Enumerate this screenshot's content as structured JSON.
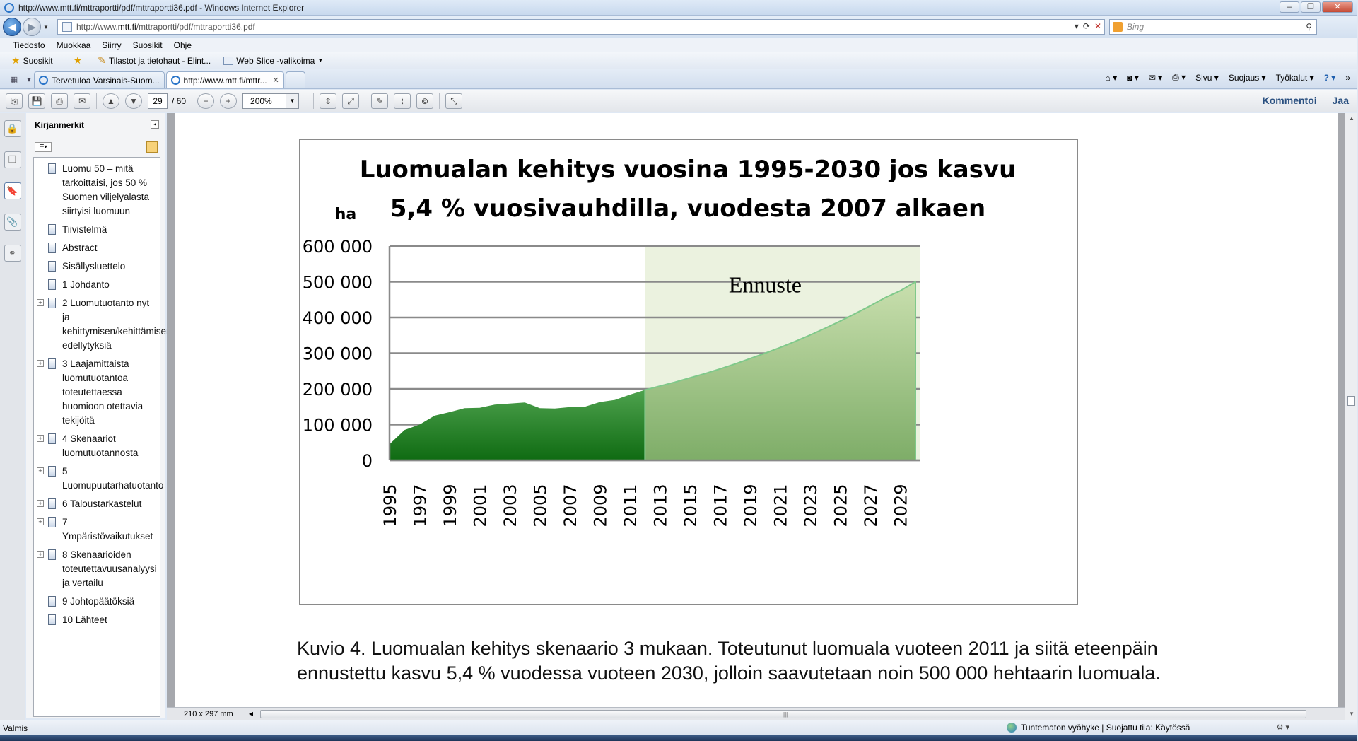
{
  "window": {
    "title": "http://www.mtt.fi/mttraportti/pdf/mttraportti36.pdf - Windows Internet Explorer",
    "min": "–",
    "max": "❐",
    "close": "✕"
  },
  "address": {
    "url_prefix": "http://www.",
    "url_domain": "mtt.fi",
    "url_path": "/mttraportti/pdf/mttraportti36.pdf",
    "search_placeholder": "Bing"
  },
  "menu": [
    "Tiedosto",
    "Muokkaa",
    "Siirry",
    "Suosikit",
    "Ohje"
  ],
  "favorites": {
    "label": "Suosikit",
    "items": [
      "Tilastot ja tietohaut - Elint...",
      "Web Slice -valikoima"
    ]
  },
  "tabs": [
    {
      "label": "Tervetuloa Varsinais-Suom...",
      "active": false
    },
    {
      "label": "http://www.mtt.fi/mttr...",
      "active": true
    }
  ],
  "commandbar": {
    "page": "Sivu",
    "safety": "Suojaus",
    "tools": "Työkalut"
  },
  "acrobat": {
    "current_page": "29",
    "total_pages": "/ 60",
    "zoom": "200%",
    "comment": "Kommentoi",
    "share": "Jaa"
  },
  "bookmarks": {
    "title": "Kirjanmerkit",
    "items": [
      {
        "label": "Luomu 50 – mitä tarkoittaisi, jos 50 % Suomen viljelyalasta siirtyisi luomuun",
        "expandable": false
      },
      {
        "label": "Tiivistelmä",
        "expandable": false
      },
      {
        "label": "Abstract",
        "expandable": false
      },
      {
        "label": "Sisällysluettelo",
        "expandable": false
      },
      {
        "label": "1 Johdanto",
        "expandable": false
      },
      {
        "label": "2 Luomutuotanto nyt ja kehittymisen/kehittämisen edellytyksiä",
        "expandable": true
      },
      {
        "label": "3 Laajamittaista luomutuotantoa toteutettaessa huomioon otettavia tekijöitä",
        "expandable": true
      },
      {
        "label": "4 Skenaariot luomutuotannosta",
        "expandable": true
      },
      {
        "label": "5 Luomupuutarhatuotanto",
        "expandable": true
      },
      {
        "label": "6 Taloustarkastelut",
        "expandable": true
      },
      {
        "label": "7 Ympäristövaikutukset",
        "expandable": true
      },
      {
        "label": "8 Skenaarioiden toteutettavuusanalyysi ja vertailu",
        "expandable": true
      },
      {
        "label": "9 Johtopäätöksiä",
        "expandable": false
      },
      {
        "label": "10 Lähteet",
        "expandable": false
      }
    ]
  },
  "chart_data": {
    "type": "area",
    "title_line1": "Luomualan kehitys vuosina 1995-2030 jos kasvu",
    "title_line2": "5,4 % vuosivauhdilla, vuodesta 2007 alkaen",
    "ylabel": "ha",
    "ylim": [
      0,
      600000
    ],
    "yticks": [
      "0",
      "100 000",
      "200 000",
      "300 000",
      "400 000",
      "500 000",
      "600 000"
    ],
    "ytick_values": [
      0,
      100000,
      200000,
      300000,
      400000,
      500000,
      600000
    ],
    "xlim": [
      1995,
      2030
    ],
    "xtick_labels": [
      "1995",
      "1997",
      "1999",
      "2001",
      "2003",
      "2005",
      "2007",
      "2009",
      "2011",
      "2013",
      "2015",
      "2017",
      "2019",
      "2021",
      "2023",
      "2025",
      "2027",
      "2029"
    ],
    "forecast_label": "Ennuste",
    "forecast_start": 2012,
    "grid": true,
    "series": [
      {
        "x": [
          1995,
          1996,
          1997,
          1998,
          1999,
          2000,
          2001,
          2002,
          2003,
          2004,
          2005,
          2006,
          2007,
          2008,
          2009,
          2010,
          2011,
          2012
        ],
        "values": [
          45000,
          85000,
          100000,
          125000,
          135000,
          146000,
          147000,
          156000,
          159000,
          162000,
          146000,
          145000,
          149000,
          150000,
          163000,
          169000,
          184000,
          197000
        ],
        "color": "#1e7a1e"
      },
      {
        "x": [
          2012,
          2013,
          2014,
          2015,
          2016,
          2017,
          2018,
          2019,
          2020,
          2021,
          2022,
          2023,
          2024,
          2025,
          2026,
          2027,
          2028,
          2029,
          2030
        ],
        "values": [
          197000,
          208000,
          219000,
          231000,
          243000,
          256000,
          270000,
          285000,
          300000,
          316000,
          333000,
          351000,
          370000,
          390000,
          411000,
          433000,
          456000,
          475000,
          500000
        ],
        "color": "#a8c98e"
      }
    ],
    "colors": {
      "actual_top": "#4ea24e",
      "actual_bottom": "#0f6b12",
      "forecast_top": "#c9dfae",
      "forecast_bottom": "#7ead68",
      "forecast_bg": "#ebf2df",
      "forecast_line": "#7fc98a"
    }
  },
  "caption": {
    "line1": "Kuvio 4. Luomualan kehitys skenaario 3 mukaan. Toteutunut luomuala vuoteen 2011 ja siitä eteenpäin",
    "line2": "ennustettu kasvu 5,4 % vuodessa vuoteen 2030, jolloin saavutetaan noin 500 000 hehtaarin luomuala."
  },
  "doc_bottom": {
    "page_size": "210 x 297 mm"
  },
  "status": {
    "left": "Valmis",
    "zone": "Tuntematon vyöhyke | Suojattu tila: Käytössä"
  }
}
